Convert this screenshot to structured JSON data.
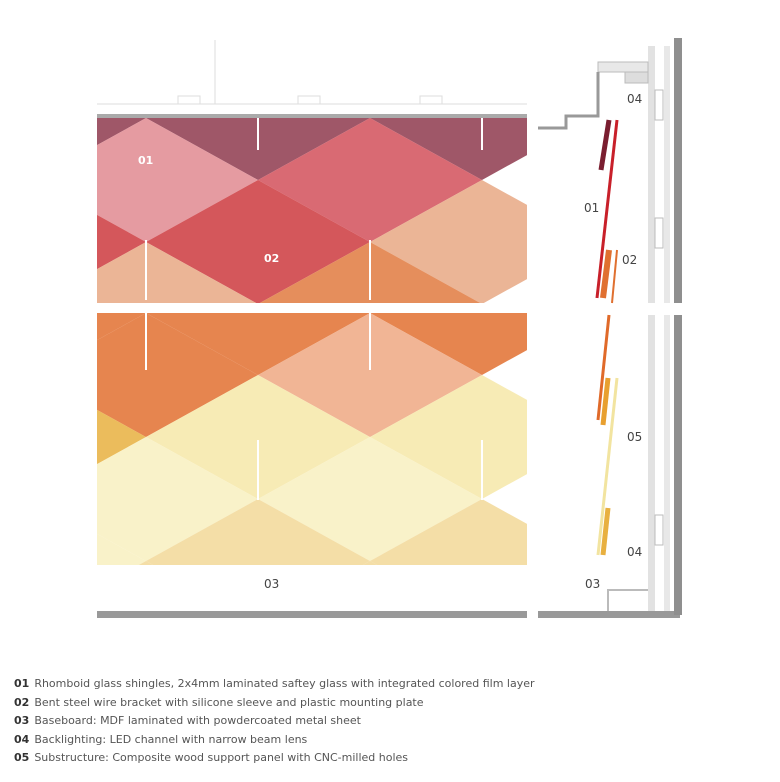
{
  "elevation_labels": {
    "shingles": "01",
    "bracket": "02",
    "baseboard": "03"
  },
  "section_labels": {
    "backlight_top": "04",
    "shingles": "01",
    "bracket": "02",
    "substructure": "05",
    "backlight_bottom": "04",
    "baseboard": "03"
  },
  "legend": [
    {
      "num": "01",
      "text": "Rhomboid glass shingles, 2x4mm laminated saftey glass with integrated colored film layer"
    },
    {
      "num": "02",
      "text": "Bent steel wire bracket with silicone sleeve and plastic mounting plate"
    },
    {
      "num": "03",
      "text": "Baseboard: MDF laminated with powdercoated metal sheet"
    },
    {
      "num": "04",
      "text": "Backlighting: LED channel with narrow beam lens"
    },
    {
      "num": "05",
      "text": "Substructure: Composite wood support panel with CNC-milled holes"
    }
  ],
  "colors": {
    "upper_palette": [
      "#8e3a4e",
      "#b07080",
      "#d2505a",
      "#e08a90",
      "#cc3a3e",
      "#e7a884",
      "#e07a40"
    ],
    "lower_palette": [
      "#e27030",
      "#eea882",
      "#e8b040",
      "#f0d28a",
      "#f6e8a8",
      "#f8f0c0",
      "#f2d898"
    ],
    "wall": "#8f8f8f",
    "panel": "#e2e2e2"
  }
}
